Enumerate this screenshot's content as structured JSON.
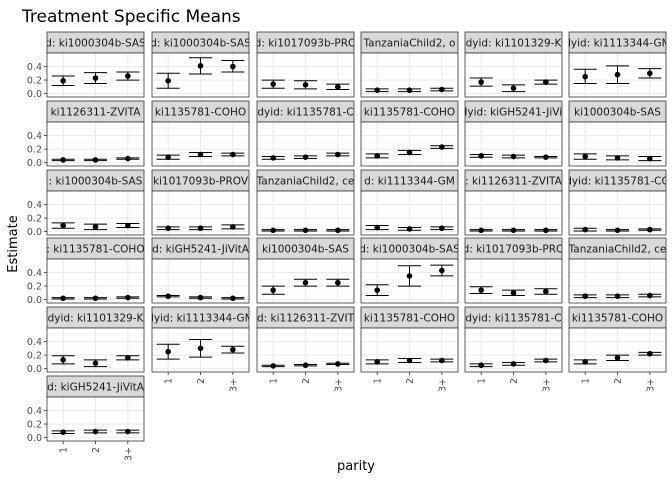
{
  "chart_data": {
    "type": "scatter",
    "title": "Treatment Specific Means",
    "xlabel": "parity",
    "ylabel": "Estimate",
    "categories": [
      "1",
      "2",
      "3+"
    ],
    "ylim": [
      -0.05,
      0.6
    ],
    "yticks": [
      0.0,
      0.2,
      0.4
    ],
    "ytick_labels": [
      "0.0",
      "0.2",
      "0.4"
    ],
    "grid": true,
    "legend": "none",
    "colors": {
      "panel_bg": "#ffffff",
      "strip_bg": "#d9d9d9",
      "grid_major": "#ebebeb",
      "grid_minor": "#f5f5f5",
      "border": "#333333",
      "point": "#000000",
      "axis_text": "#4d4d4d",
      "title": "#000000"
    },
    "panels": [
      {
        "strip": "d: ki1000304b-SAS",
        "values": [
          0.19,
          0.23,
          0.26
        ],
        "lower": [
          0.12,
          0.15,
          0.2
        ],
        "upper": [
          0.26,
          0.31,
          0.32
        ]
      },
      {
        "strip": "d: ki1000304b-SAS",
        "values": [
          0.19,
          0.41,
          0.4
        ],
        "lower": [
          0.08,
          0.29,
          0.32
        ],
        "upper": [
          0.3,
          0.53,
          0.49
        ]
      },
      {
        "strip": "d: ki1017093b-PRO",
        "values": [
          0.14,
          0.13,
          0.1
        ],
        "lower": [
          0.08,
          0.07,
          0.06
        ],
        "upper": [
          0.2,
          0.19,
          0.14
        ]
      },
      {
        "strip": "TanzaniaChild2, o",
        "values": [
          0.05,
          0.05,
          0.06
        ],
        "lower": [
          0.03,
          0.03,
          0.04
        ],
        "upper": [
          0.07,
          0.07,
          0.08
        ]
      },
      {
        "strip": "dyid: ki1101329-K",
        "values": [
          0.17,
          0.08,
          0.17
        ],
        "lower": [
          0.11,
          0.03,
          0.14
        ],
        "upper": [
          0.23,
          0.13,
          0.2
        ]
      },
      {
        "strip": "dyid: ki1113344-GM",
        "values": [
          0.25,
          0.28,
          0.3
        ],
        "lower": [
          0.15,
          0.15,
          0.23
        ],
        "upper": [
          0.36,
          0.41,
          0.37
        ]
      },
      {
        "strip": "ki1126311-ZVITA",
        "values": [
          0.04,
          0.04,
          0.06
        ],
        "lower": [
          0.03,
          0.03,
          0.05
        ],
        "upper": [
          0.05,
          0.05,
          0.07
        ]
      },
      {
        "strip": "ki1135781-COHO",
        "values": [
          0.08,
          0.12,
          0.12
        ],
        "lower": [
          0.05,
          0.09,
          0.1
        ],
        "upper": [
          0.11,
          0.15,
          0.14
        ]
      },
      {
        "strip": "dyid: ki1135781-C",
        "values": [
          0.07,
          0.08,
          0.12
        ],
        "lower": [
          0.05,
          0.06,
          0.1
        ],
        "upper": [
          0.09,
          0.1,
          0.14
        ]
      },
      {
        "strip": "ki1135781-COHO",
        "values": [
          0.1,
          0.15,
          0.23
        ],
        "lower": [
          0.07,
          0.12,
          0.21
        ],
        "upper": [
          0.13,
          0.18,
          0.25
        ]
      },
      {
        "strip": "dyid: kiGH5241-JiVit",
        "values": [
          0.1,
          0.09,
          0.08
        ],
        "lower": [
          0.08,
          0.07,
          0.07
        ],
        "upper": [
          0.12,
          0.11,
          0.09
        ]
      },
      {
        "strip": "ki1000304b-SAS",
        "values": [
          0.09,
          0.07,
          0.06
        ],
        "lower": [
          0.05,
          0.04,
          0.03
        ],
        "upper": [
          0.13,
          0.1,
          0.09
        ]
      },
      {
        "strip": ": ki1000304b-SAS",
        "values": [
          0.09,
          0.07,
          0.09
        ],
        "lower": [
          0.05,
          0.03,
          0.06
        ],
        "upper": [
          0.13,
          0.11,
          0.12
        ]
      },
      {
        "strip": "ki1017093b-PROV",
        "values": [
          0.05,
          0.05,
          0.07
        ],
        "lower": [
          0.03,
          0.03,
          0.04
        ],
        "upper": [
          0.07,
          0.07,
          0.1
        ]
      },
      {
        "strip": "TanzaniaChild2, ce",
        "values": [
          0.02,
          0.02,
          0.02
        ],
        "lower": [
          0.01,
          0.01,
          0.01
        ],
        "upper": [
          0.03,
          0.03,
          0.03
        ]
      },
      {
        "strip": "d: ki1113344-GM",
        "values": [
          0.06,
          0.04,
          0.05
        ],
        "lower": [
          0.03,
          0.02,
          0.03
        ],
        "upper": [
          0.09,
          0.06,
          0.07
        ]
      },
      {
        "strip": ": ki1126311-ZVITA",
        "values": [
          0.02,
          0.02,
          0.02
        ],
        "lower": [
          0.01,
          0.01,
          0.01
        ],
        "upper": [
          0.03,
          0.03,
          0.03
        ]
      },
      {
        "strip": "dyid: ki1135781-CO",
        "values": [
          0.03,
          0.02,
          0.03
        ],
        "lower": [
          0.01,
          0.01,
          0.02
        ],
        "upper": [
          0.05,
          0.03,
          0.04
        ]
      },
      {
        "strip": ": ki1135781-COHO",
        "values": [
          0.02,
          0.02,
          0.03
        ],
        "lower": [
          0.01,
          0.01,
          0.02
        ],
        "upper": [
          0.03,
          0.03,
          0.04
        ]
      },
      {
        "strip": "d: kiGH5241-JiVitA",
        "values": [
          0.05,
          0.03,
          0.02
        ],
        "lower": [
          0.04,
          0.02,
          0.01
        ],
        "upper": [
          0.06,
          0.04,
          0.03
        ]
      },
      {
        "strip": "ki1000304b-SAS",
        "values": [
          0.14,
          0.25,
          0.25
        ],
        "lower": [
          0.08,
          0.2,
          0.2
        ],
        "upper": [
          0.2,
          0.3,
          0.3
        ]
      },
      {
        "strip": "d: ki1000304b-SAS",
        "values": [
          0.14,
          0.35,
          0.43
        ],
        "lower": [
          0.06,
          0.2,
          0.35
        ],
        "upper": [
          0.22,
          0.5,
          0.51
        ]
      },
      {
        "strip": "d: ki1017093b-PRO",
        "values": [
          0.14,
          0.1,
          0.12
        ],
        "lower": [
          0.09,
          0.06,
          0.08
        ],
        "upper": [
          0.19,
          0.14,
          0.16
        ]
      },
      {
        "strip": "TanzaniaChild2, ce",
        "values": [
          0.05,
          0.05,
          0.06
        ],
        "lower": [
          0.03,
          0.03,
          0.04
        ],
        "upper": [
          0.07,
          0.07,
          0.08
        ]
      },
      {
        "strip": "dyid: ki1101329-K",
        "values": [
          0.13,
          0.08,
          0.16
        ],
        "lower": [
          0.07,
          0.03,
          0.13
        ],
        "upper": [
          0.19,
          0.13,
          0.19
        ]
      },
      {
        "strip": "dyid: ki1113344-GM",
        "values": [
          0.25,
          0.3,
          0.28
        ],
        "lower": [
          0.14,
          0.17,
          0.23
        ],
        "upper": [
          0.36,
          0.43,
          0.33
        ]
      },
      {
        "strip": "d: ki1126311-ZVIT",
        "values": [
          0.04,
          0.05,
          0.07
        ],
        "lower": [
          0.03,
          0.04,
          0.06
        ],
        "upper": [
          0.05,
          0.06,
          0.08
        ]
      },
      {
        "strip": "ki1135781-COHO",
        "values": [
          0.1,
          0.12,
          0.12
        ],
        "lower": [
          0.07,
          0.09,
          0.1
        ],
        "upper": [
          0.13,
          0.15,
          0.14
        ]
      },
      {
        "strip": "dyid: ki1135781-C",
        "values": [
          0.05,
          0.07,
          0.12
        ],
        "lower": [
          0.03,
          0.05,
          0.1
        ],
        "upper": [
          0.07,
          0.09,
          0.14
        ]
      },
      {
        "strip": "ki1135781-COHO",
        "values": [
          0.1,
          0.16,
          0.22
        ],
        "lower": [
          0.07,
          0.12,
          0.2
        ],
        "upper": [
          0.13,
          0.2,
          0.24
        ]
      },
      {
        "strip": "d: kiGH5241-JiVitA",
        "values": [
          0.08,
          0.09,
          0.09
        ],
        "lower": [
          0.06,
          0.07,
          0.07
        ],
        "upper": [
          0.1,
          0.11,
          0.11
        ]
      }
    ]
  }
}
